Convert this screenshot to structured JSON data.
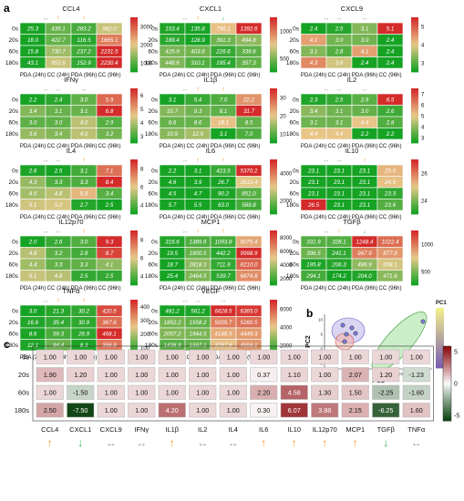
{
  "panel_labels": {
    "a": "a",
    "b": "b",
    "c": "c"
  },
  "colors": {
    "low": "#16a324",
    "mid": "#e8c98a",
    "high": "#d42b2b",
    "up_arrow": "#f08c1e",
    "down_arrow": "#27b44a",
    "flat_arrow": "#a0a0a0"
  },
  "chart_data": [
    {
      "type": "heatmap",
      "panel": "a",
      "row_labels": [
        "0s",
        "20s",
        "60s",
        "180s"
      ],
      "col_labels": [
        "PDA (24h)",
        "CC (24h)",
        "PDA (96h)",
        "CC (96h)"
      ],
      "heatmaps": [
        {
          "title": "CCL4",
          "colorbar_ticks": [
            "3000",
            "2000",
            "1000"
          ],
          "arrows": [
            "flat",
            "up",
            "up"
          ],
          "values": [
            [
              25.3,
              439.1,
              283.2,
              962.0
            ],
            [
              18.0,
              422.7,
              116.5,
              1665.1
            ],
            [
              15.8,
              730.7,
              237.2,
              2231.5
            ],
            [
              43.1,
              952.6,
              152.9,
              2230.4
            ]
          ]
        },
        {
          "title": "CXCL1",
          "colorbar_ticks": [
            "1000",
            "500"
          ],
          "arrows": [
            "flat",
            "up",
            "down"
          ],
          "values": [
            [
              153.4,
              135.8,
              796.1,
              1392.6
            ],
            [
              189.4,
              128.9,
              391.3,
              494.8
            ],
            [
              425.9,
              403.6,
              226.6,
              339.6
            ],
            [
              448.6,
              310.1,
              195.4,
              357.3
            ]
          ]
        },
        {
          "title": "CXCL9",
          "colorbar_ticks": [
            "5",
            "4",
            "3"
          ],
          "arrows": [
            "flat",
            "flat",
            "flat"
          ],
          "values": [
            [
              2.4,
              2.5,
              3.1,
              5.1
            ],
            [
              4.1,
              3.0,
              3.0,
              2.4
            ],
            [
              3.1,
              2.8,
              4.1,
              2.4
            ],
            [
              4.3,
              3.6,
              2.4,
              2.4
            ]
          ]
        },
        {
          "title": "IFNγ",
          "colorbar_ticks": [
            "6",
            "5",
            "4",
            "3"
          ],
          "arrows": [
            "flat",
            "flat",
            "flat"
          ],
          "values": [
            [
              2.2,
              2.4,
              3.0,
              5.9
            ],
            [
              3.4,
              3.1,
              3.1,
              6.8
            ],
            [
              3.0,
              3.0,
              4.0,
              2.9
            ],
            [
              3.6,
              3.4,
              4.0,
              3.2
            ]
          ]
        },
        {
          "title": "IL1β",
          "colorbar_ticks": [
            "30",
            "20",
            "10"
          ],
          "arrows": [
            "flat",
            "up",
            "up"
          ],
          "values": [
            [
              3.1,
              5.4,
              7.0,
              22.2
            ],
            [
              10.7,
              9.3,
              8.1,
              31.7
            ],
            [
              8.6,
              8.6,
              18.1,
              8.5
            ],
            [
              10.9,
              12.9,
              3.1,
              7.0
            ]
          ]
        },
        {
          "title": "IL2",
          "colorbar_ticks": [
            "7",
            "6",
            "5",
            "4",
            "3"
          ],
          "arrows": [
            "flat",
            "flat",
            "flat"
          ],
          "values": [
            [
              2.3,
              2.5,
              2.9,
              6.5
            ],
            [
              3.4,
              3.1,
              3.0,
              2.6
            ],
            [
              3.1,
              3.1,
              4.4,
              2.8
            ],
            [
              4.4,
              4.4,
              2.2,
              2.2
            ]
          ]
        },
        {
          "title": "IL4",
          "colorbar_ticks": [
            "8",
            "6",
            "4"
          ],
          "arrows": [
            "flat",
            "flat",
            "up"
          ],
          "values": [
            [
              2.6,
              2.5,
              3.1,
              7.1
            ],
            [
              4.3,
              3.3,
              3.3,
              8.4
            ],
            [
              4.5,
              4.8,
              5.8,
              3.4
            ],
            [
              5.1,
              5.2,
              2.7,
              2.5
            ]
          ]
        },
        {
          "title": "IL6",
          "colorbar_ticks": [
            "4000",
            "2000"
          ],
          "arrows": [
            "flat",
            "up",
            "up"
          ],
          "values": [
            [
              2.2,
              3.1,
              423.5,
              5370.2
            ],
            [
              4.6,
              3.9,
              26.7,
              2612.4
            ],
            [
              4.5,
              4.7,
              90.2,
              851.0
            ],
            [
              5.7,
              5.5,
              63.0,
              589.8
            ]
          ]
        },
        {
          "title": "IL10",
          "colorbar_ticks": [
            "26",
            "24"
          ],
          "arrows": [
            "flat",
            "flat",
            "up"
          ],
          "values": [
            [
              23.1,
              23.1,
              23.1,
              25.0
            ],
            [
              23.1,
              23.1,
              23.1,
              24.9
            ],
            [
              23.1,
              23.1,
              23.1,
              23.3
            ],
            [
              26.5,
              23.1,
              23.1,
              23.6
            ]
          ]
        },
        {
          "title": "IL12p70",
          "colorbar_ticks": [
            "8",
            "6",
            "4"
          ],
          "arrows": [
            "flat",
            "flat",
            "up"
          ],
          "values": [
            [
              2.0,
              2.6,
              3.0,
              9.3
            ],
            [
              4.8,
              3.2,
              2.8,
              8.7
            ],
            [
              4.4,
              3.3,
              3.3,
              4.1
            ],
            [
              5.1,
              4.8,
              2.5,
              2.5
            ]
          ]
        },
        {
          "title": "MCP1",
          "colorbar_ticks": [
            "8000",
            "6000",
            "4000",
            "2000"
          ],
          "arrows": [
            "flat",
            "up",
            "up"
          ],
          "values": [
            [
              316.6,
              1389.6,
              1093.8,
              6075.4
            ],
            [
              19.5,
              1900.5,
              442.2,
              9998.9
            ],
            [
              18.7,
              2818.3,
              711.9,
              8210.0
            ],
            [
              25.4,
              2464.5,
              539.7,
              6874.8
            ]
          ]
        },
        {
          "title": "TGFβ",
          "colorbar_ticks": [
            "1000",
            "500"
          ],
          "arrows": [
            "flat",
            "up",
            "down"
          ],
          "values": [
            [
              331.9,
              328.1,
              1248.4,
              1022.4
            ],
            [
              396.5,
              241.1,
              967.9,
              877.9
            ],
            [
              195.8,
              206.3,
              486.9,
              658.1
            ],
            [
              294.1,
              174.2,
              204.0,
              471.6
            ]
          ]
        },
        {
          "title": "TNFα",
          "colorbar_ticks": [
            "400",
            "300",
            "200",
            "100"
          ],
          "arrows": [
            "flat",
            "up",
            "up"
          ],
          "values": [
            [
              3.0,
              21.3,
              30.2,
              420.5
            ],
            [
              16.6,
              35.4,
              30.9,
              367.6
            ],
            [
              8.6,
              59.3,
              26.9,
              468.1
            ],
            [
              12.1,
              94.4,
              8.3,
              356.9
            ]
          ]
        },
        {
          "title": "VEGF",
          "colorbar_ticks": [
            "6000",
            "4000",
            "2000"
          ],
          "arrows": [
            "flat",
            "flat",
            "flat"
          ],
          "values": [
            [
              481.2,
              561.2,
              6628.5,
              6365.0
            ],
            [
              1852.2,
              1558.2,
              5005.7,
              5280.5
            ],
            [
              2057.2,
              1944.5,
              4146.5,
              4449.3
            ],
            [
              1438.9,
              1597.1,
              3787.8,
              4559.1
            ]
          ]
        }
      ]
    },
    {
      "type": "scatter",
      "panel": "b",
      "xlabel": "PC1",
      "ylabel": "PC2",
      "colorbar_label": "PC1",
      "x_ticks": [
        "-5",
        "0",
        "5",
        "10",
        "15"
      ],
      "y_ticks": [
        "10",
        "5",
        "0",
        "-5"
      ],
      "points_text": [
        "",
        "",
        "",
        "",
        ""
      ]
    },
    {
      "type": "heatmap",
      "panel": "c",
      "row_labels": [
        "0s",
        "20s",
        "60s",
        "180s"
      ],
      "col_labels": [
        "CCL4",
        "CXCL1",
        "CXCL9",
        "IFNγ",
        "IL1β",
        "IL2",
        "IL4",
        "IL6",
        "IL10",
        "IL12p70",
        "MCP1",
        "TGFβ",
        "TNFα"
      ],
      "colorbar_ticks": [
        "5",
        "0",
        "-5"
      ],
      "arrows": [
        "up",
        "down",
        "flat",
        "flat",
        "up",
        "flat",
        "flat",
        "up",
        "up",
        "up",
        "up",
        "down",
        "flat"
      ],
      "values": [
        [
          1.0,
          1.0,
          1.0,
          1.0,
          1.0,
          1.0,
          1.0,
          1.0,
          1.0,
          1.0,
          1.0,
          1.0,
          1.0
        ],
        [
          1.9,
          1.2,
          1.0,
          1.0,
          1.0,
          1.0,
          1.0,
          0.37,
          1.1,
          1.0,
          2.07,
          1.2,
          -1.23
        ],
        [
          1.0,
          -1.5,
          1.0,
          1.0,
          1.0,
          1.0,
          1.0,
          2.2,
          4.58,
          1.3,
          1.5,
          -2.25,
          -1.6
        ],
        [
          2.5,
          -7.5,
          1.0,
          1.0,
          4.2,
          1.0,
          1.0,
          0.3,
          6.07,
          3.88,
          2.15,
          -6.25,
          1.6
        ]
      ]
    }
  ]
}
